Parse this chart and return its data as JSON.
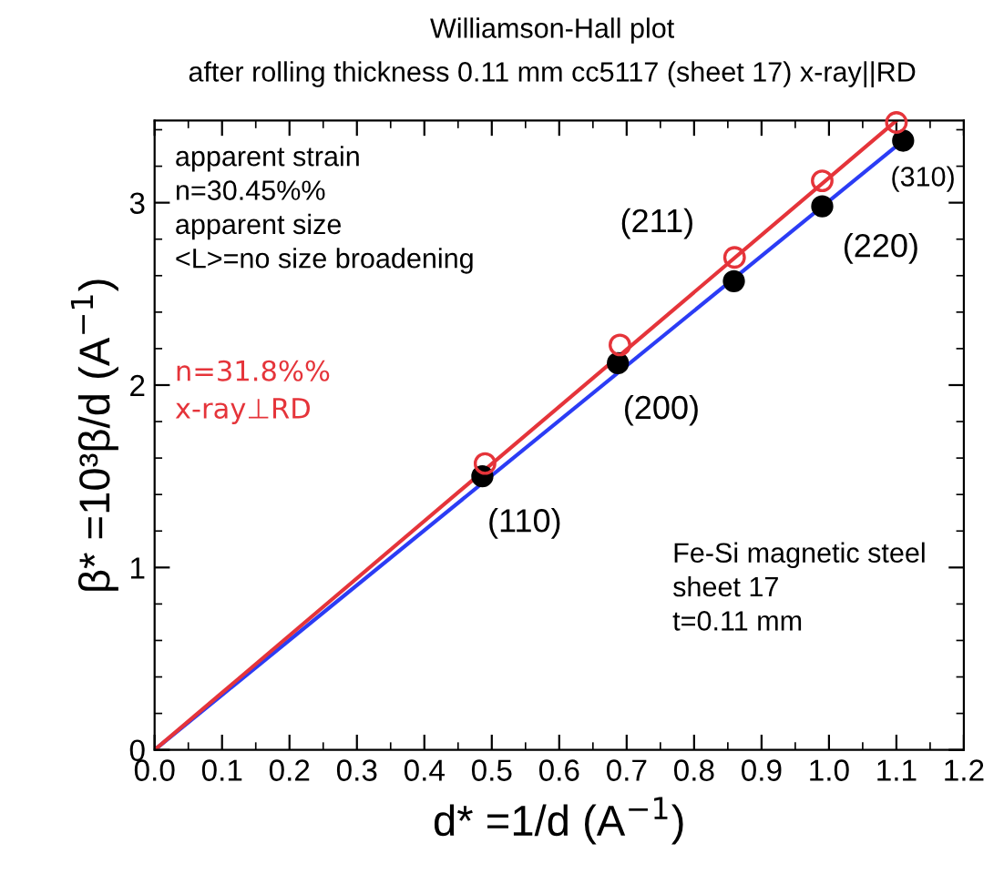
{
  "chart_data": {
    "type": "scatter",
    "title": "Williamson-Hall plot",
    "subtitle": "after rolling thickness 0.11 mm cc5117 (sheet 17) x-ray||RD",
    "xlabel": "d* =1/d (A$^{−1}$)",
    "ylabel": "β* =10³β/d (A$^{−1}$)",
    "xlim": [
      0,
      1.2
    ],
    "ylim": [
      0,
      3.45
    ],
    "xticks": [
      {
        "value": 0,
        "label": "0.0"
      },
      0.1,
      0.2,
      0.3,
      0.4,
      0.5,
      0.6,
      0.7,
      0.8,
      0.9,
      {
        "value": 1,
        "label": "1.0"
      },
      1.1,
      1.2
    ],
    "yticks": [
      0,
      1,
      2,
      3
    ],
    "grid": false,
    "marker": "circle",
    "series": [
      {
        "type": "line",
        "marker": "none",
        "color": "#2b3cf5",
        "x": [
          0,
          1.12
        ],
        "values": [
          0,
          3.37
        ]
      },
      {
        "type": "line",
        "marker": "none",
        "color": "#e5343a",
        "x": [
          0,
          1.1
        ],
        "values": [
          0,
          3.45
        ]
      },
      {
        "color": "#000000",
        "x": [
          0.486,
          0.687,
          0.859,
          0.99,
          1.11
        ],
        "values": [
          1.5,
          2.12,
          2.57,
          2.98,
          3.34
        ]
      },
      {
        "name": "n=31.8%%\nx-ray⊥RD",
        "color": "#e5343a",
        "x": [
          0.49,
          0.69,
          0.86,
          0.99,
          1.1
        ],
        "values": [
          1.57,
          2.22,
          2.7,
          3.12,
          3.44
        ]
      }
    ],
    "annotations": [
      {
        "text": "(110)",
        "x": 0.486,
        "y": 1.5
      },
      {
        "text": "(200)",
        "x": 0.687,
        "y": 2.12
      },
      {
        "text": "(211)",
        "x": 0.859,
        "y": 2.7
      },
      {
        "text": "(220)",
        "x": 0.99,
        "y": 2.98
      },
      {
        "text": "(310)",
        "x": 1.11,
        "y": 3.34
      },
      "apparent strain\nn=30.45%%\napparent size\n<L>=no size broadening",
      "Fe-Si magnetic steel\nsheet 17\nt=0.11 mm"
    ]
  }
}
